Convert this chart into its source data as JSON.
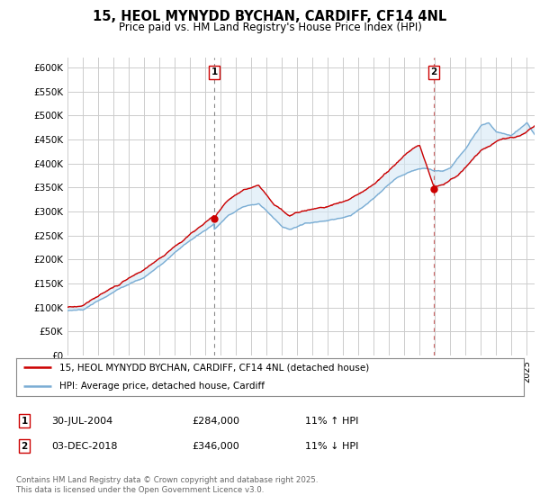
{
  "title": "15, HEOL MYNYDD BYCHAN, CARDIFF, CF14 4NL",
  "subtitle": "Price paid vs. HM Land Registry's House Price Index (HPI)",
  "ylabel_ticks": [
    "£0",
    "£50K",
    "£100K",
    "£150K",
    "£200K",
    "£250K",
    "£300K",
    "£350K",
    "£400K",
    "£450K",
    "£500K",
    "£550K",
    "£600K"
  ],
  "ytick_values": [
    0,
    50000,
    100000,
    150000,
    200000,
    250000,
    300000,
    350000,
    400000,
    450000,
    500000,
    550000,
    600000
  ],
  "ylim": [
    0,
    620000
  ],
  "xlim_start": 1995.0,
  "xlim_end": 2025.5,
  "marker1_x": 2004.58,
  "marker1_y": 284000,
  "marker2_x": 2018.92,
  "marker2_y": 346000,
  "annotation1": {
    "date": "30-JUL-2004",
    "price": "£284,000",
    "hpi": "11% ↑ HPI"
  },
  "annotation2": {
    "date": "03-DEC-2018",
    "price": "£346,000",
    "hpi": "11% ↓ HPI"
  },
  "legend_line1": "15, HEOL MYNYDD BYCHAN, CARDIFF, CF14 4NL (detached house)",
  "legend_line2": "HPI: Average price, detached house, Cardiff",
  "footer": "Contains HM Land Registry data © Crown copyright and database right 2025.\nThis data is licensed under the Open Government Licence v3.0.",
  "line_color_red": "#cc0000",
  "line_color_blue": "#7aadd4",
  "fill_color_blue": "#d6e8f5",
  "background_color": "#ffffff",
  "grid_color": "#cccccc",
  "vline1_color": "#888888",
  "vline2_color": "#cc6666"
}
